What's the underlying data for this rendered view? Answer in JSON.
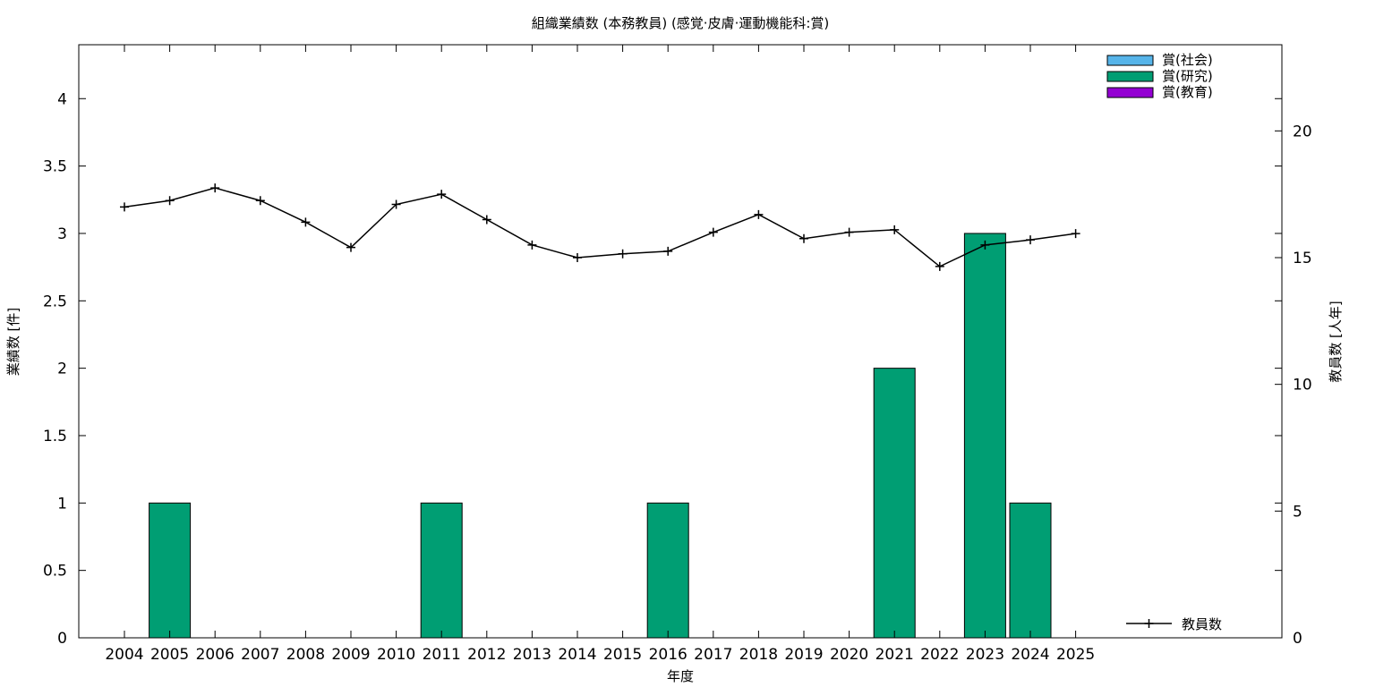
{
  "chart_data": {
    "type": "bar",
    "title": "組織業績数 (本務教員) (感覚·皮膚·運動機能科:賞)",
    "xlabel": "年度",
    "ylabel": "業績数 [件]",
    "y2label": "教員数 [人年]",
    "categories": [
      "2004",
      "2005",
      "2006",
      "2007",
      "2008",
      "2009",
      "2010",
      "2011",
      "2012",
      "2013",
      "2014",
      "2015",
      "2016",
      "2017",
      "2018",
      "2019",
      "2020",
      "2021",
      "2022",
      "2023",
      "2024",
      "2025"
    ],
    "ylim": [
      0,
      4.4
    ],
    "yticks": [
      "0",
      "0.5",
      "1",
      "1.5",
      "2",
      "2.5",
      "3",
      "3.5",
      "4"
    ],
    "y2lim": [
      0,
      23.4
    ],
    "y2ticks": [
      "0",
      "5",
      "10",
      "15",
      "20"
    ],
    "series": [
      {
        "name": "賞(社会)",
        "color": "#56b4e9",
        "values": [
          0,
          0,
          0,
          0,
          0,
          0,
          0,
          0,
          0,
          0,
          0,
          0,
          0,
          0,
          0,
          0,
          0,
          0,
          0,
          0,
          0,
          0
        ]
      },
      {
        "name": "賞(研究)",
        "color": "#009e73",
        "values": [
          0,
          1,
          0,
          0,
          0,
          0,
          0,
          1,
          0,
          0,
          0,
          0,
          1,
          0,
          0,
          0,
          0,
          2,
          0,
          3,
          1,
          0
        ]
      },
      {
        "name": "賞(教育)",
        "color": "#9400d3",
        "values": [
          0,
          0,
          0,
          0,
          0,
          0,
          0,
          0,
          0,
          0,
          0,
          0,
          0,
          0,
          0,
          0,
          0,
          0,
          0,
          0,
          0,
          0
        ]
      }
    ],
    "line_series": {
      "name": "教員数",
      "color": "#000000",
      "axis": "y2",
      "values": [
        17.0,
        17.25,
        17.75,
        17.25,
        16.4,
        15.4,
        17.1,
        17.5,
        16.5,
        15.5,
        15.0,
        15.15,
        15.25,
        16.0,
        16.7,
        15.75,
        16.0,
        16.1,
        14.65,
        15.5,
        15.7,
        15.95
      ]
    },
    "legend_position": "top-right",
    "line_legend_position": "bottom-right",
    "grid": false
  }
}
